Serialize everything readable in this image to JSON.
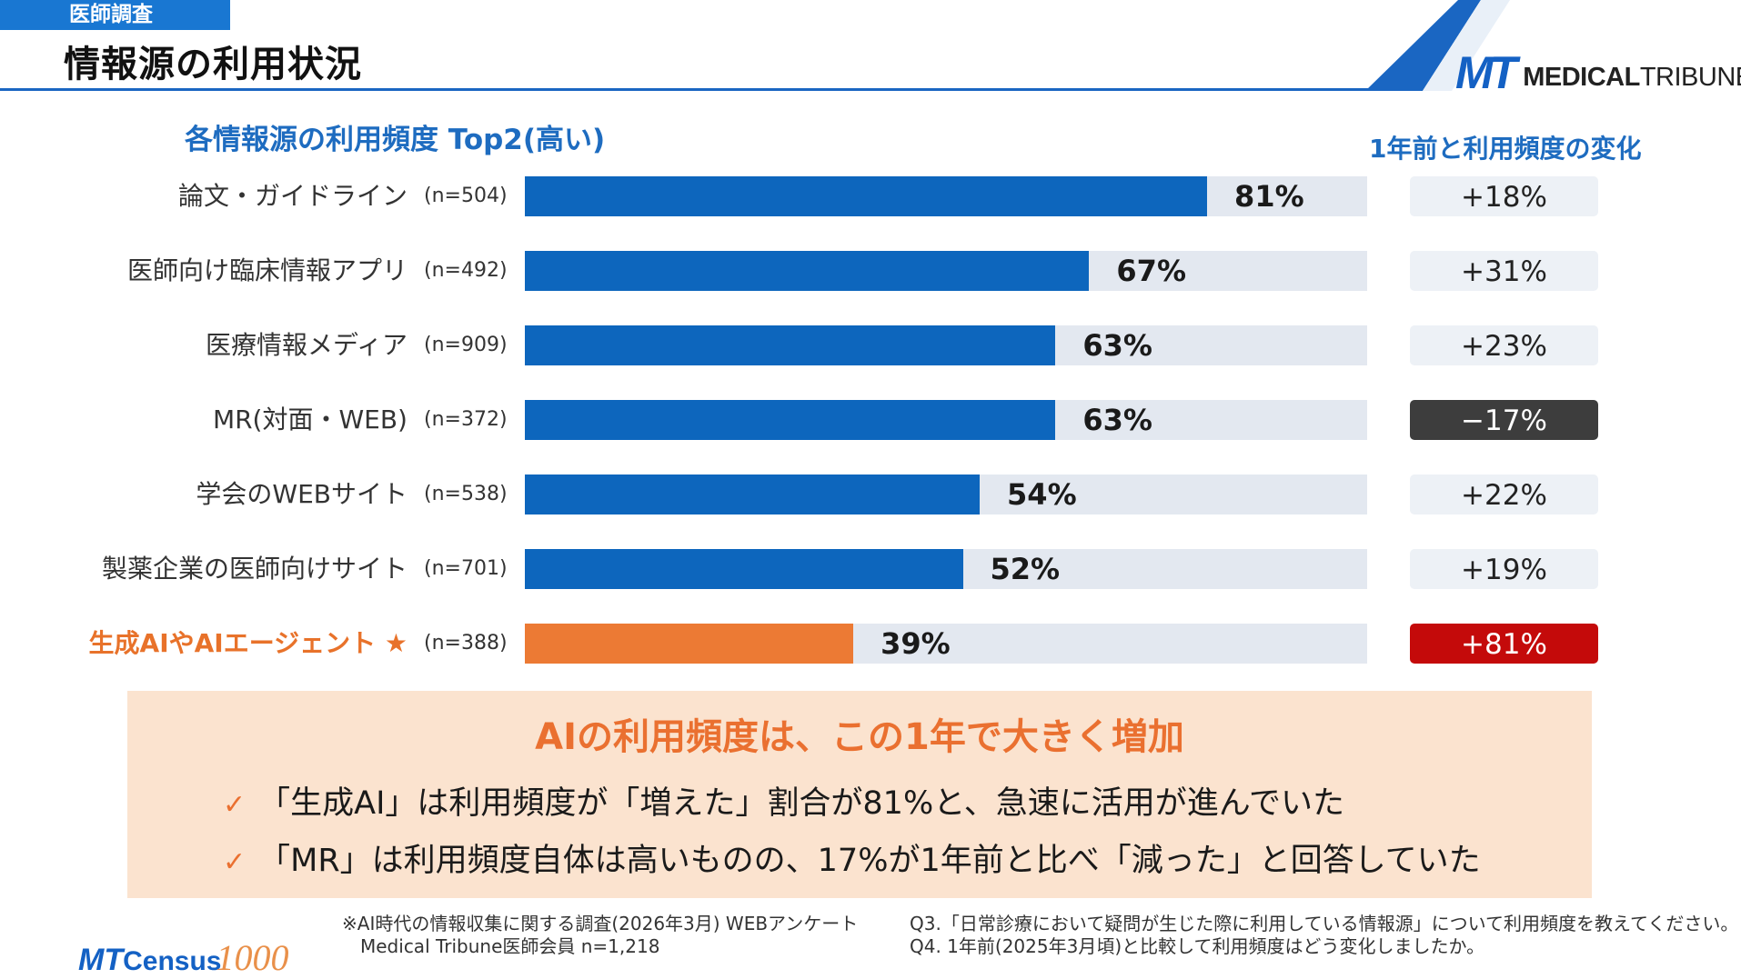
{
  "header": {
    "tag": "医師調査",
    "title": "情報源の利用状況",
    "logo_mark": "MT",
    "logo_text_bold": "MEDICAL",
    "logo_text": "TRIBUNE"
  },
  "chart_data": {
    "type": "bar",
    "orientation": "horizontal",
    "title": "各情報源の利用頻度 Top2(高い)",
    "right_column_title": "1年前と利用頻度の変化",
    "xlim": [
      0,
      100
    ],
    "unit": "%",
    "categories": [
      "論文・ガイドライン",
      "医師向け臨床情報アプリ",
      "医療情報メディア",
      "MR(対面・WEB)",
      "学会のWEBサイト",
      "製薬企業の医師向けサイト",
      "生成AIやAIエージェント ★"
    ],
    "n_labels": [
      "(n=504)",
      "(n=492)",
      "(n=909)",
      "(n=372)",
      "(n=538)",
      "(n=701)",
      "(n=388)"
    ],
    "values": [
      81,
      67,
      63,
      63,
      54,
      52,
      39
    ],
    "value_labels": [
      "81%",
      "67%",
      "63%",
      "63%",
      "54%",
      "52%",
      "39%"
    ],
    "changes": [
      "+18%",
      "+31%",
      "+23%",
      "−17%",
      "+22%",
      "+19%",
      "+81%"
    ],
    "change_values": [
      18,
      31,
      23,
      -17,
      22,
      19,
      81
    ],
    "highlight_index": 6,
    "colors": {
      "bar": "#0d66bd",
      "highlight_bar": "#ec7a34",
      "track": "#e3e8f0",
      "change_box": "#edf1f6",
      "negative_change": "#3d3d3d",
      "highlight_change": "#c40a0a"
    }
  },
  "summary": {
    "title": "AIの利用頻度は、この1年で大きく増加",
    "check_icon": "✓",
    "points": [
      "「生成AI」は利用頻度が「増えた」割合が81%と、急速に活用が進んでいた",
      "「MR」は利用頻度自体は高いものの、17%が1年前と比べ「減った」と回答していた"
    ]
  },
  "footer": {
    "source_line1": "※AI時代の情報収集に関する調査(2026年3月) WEBアンケート",
    "source_line2": "Medical Tribune医師会員 n=1,218",
    "question_q3": "Q3.「日常診療において疑問が生じた際に利用している情報源」について利用頻度を教えてください。",
    "question_q4": "Q4. 1年前(2025年3月頃)と比較して利用頻度はどう変化しましたか。",
    "census_mt": "MT",
    "census_name": "Census",
    "census_num": "1000"
  }
}
